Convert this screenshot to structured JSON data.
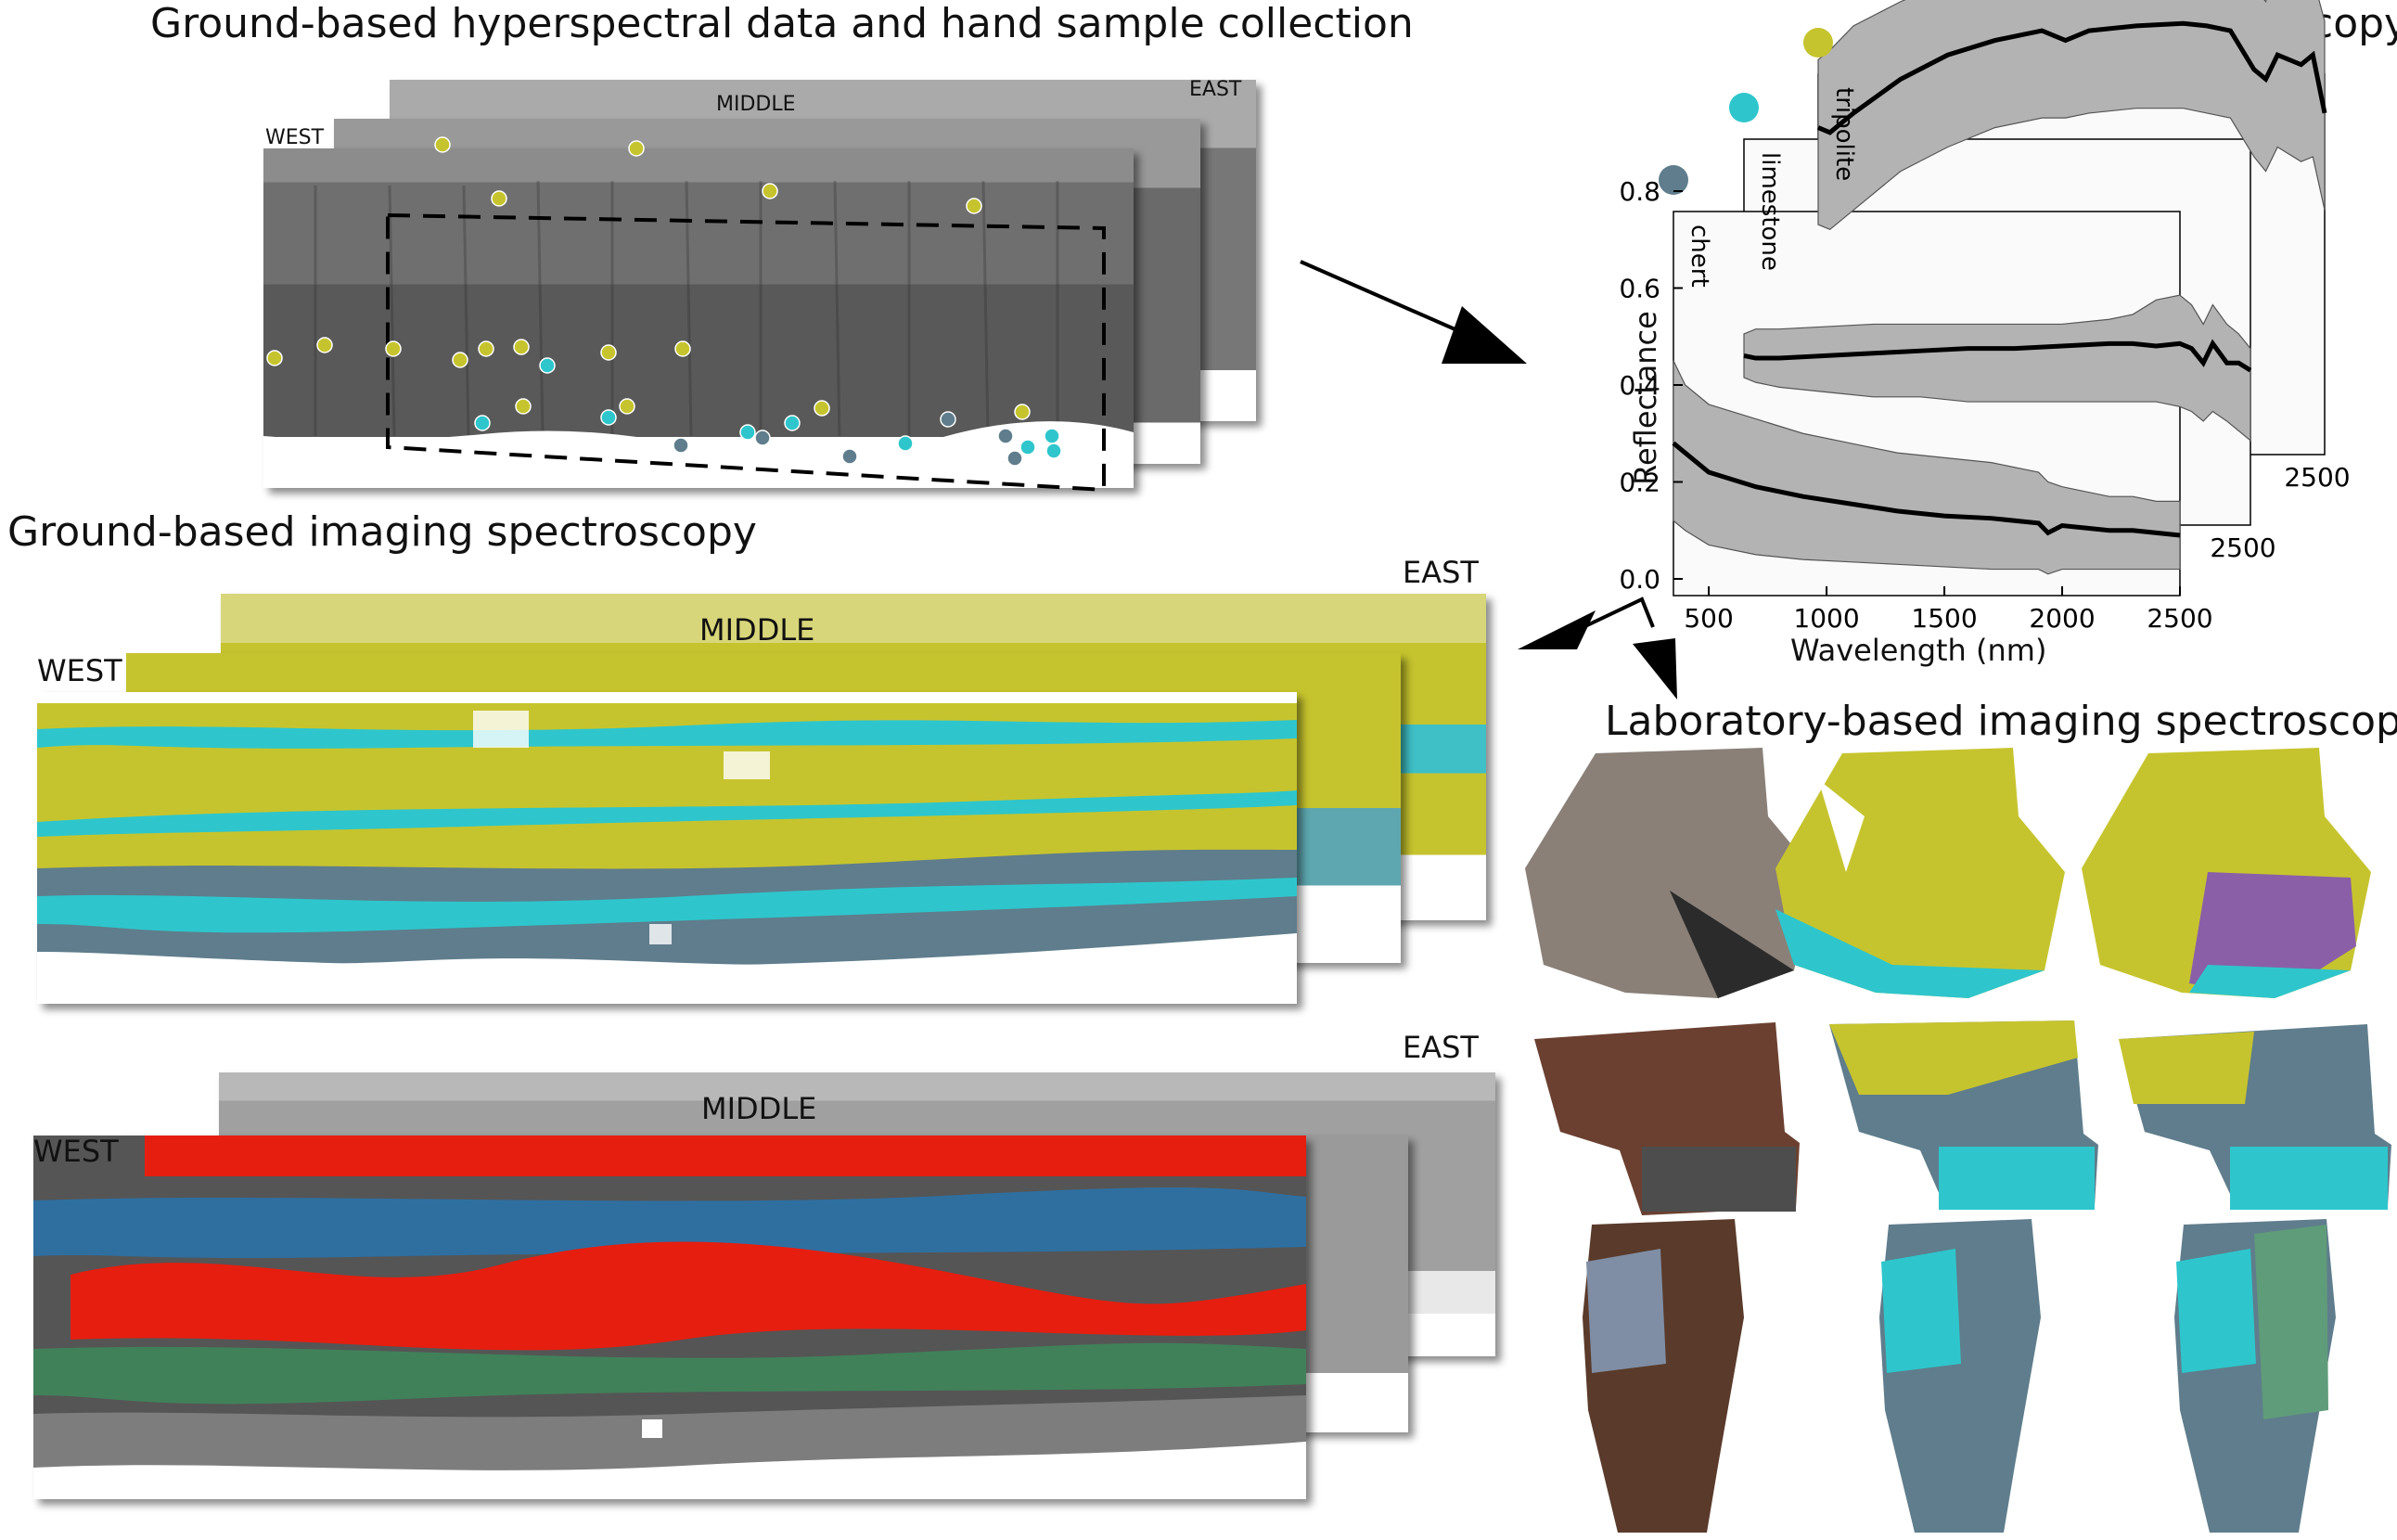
{
  "titles": {
    "field": "Ground-based hyperspectral data and hand sample collection",
    "lab_spec": "Laboratory Spectroscopy",
    "ground_imaging": "Ground-based imaging spectroscopy",
    "lab_imaging": "Laboratory-based imaging spectroscopy"
  },
  "panel_labels": {
    "top": {
      "west": "WEST",
      "middle": "MIDDLE",
      "east": "EAST"
    },
    "mid": {
      "west": "WEST",
      "middle": "MIDDLE",
      "east": "EAST"
    },
    "bottom": {
      "west": "WEST",
      "middle": "MIDDLE",
      "east": "EAST"
    }
  },
  "colors": {
    "tripolite": "#c6c42e",
    "limestone": "#2ec6cc",
    "chert": "#5f7d8c",
    "envelope": "#b3b3b3",
    "mean_line": "#000000"
  },
  "chart_data": {
    "type": "line",
    "title": "Laboratory Spectroscopy",
    "xlabel": "Wavelength (nm)",
    "ylabel": "Reflectance",
    "xlim": [
      350,
      2500
    ],
    "ylim": [
      0.0,
      0.9
    ],
    "x_ticks": [
      "500",
      "1000",
      "1500",
      "2000",
      "2500"
    ],
    "y_ticks": [
      "0.0",
      "0.2",
      "0.4",
      "0.6",
      "0.8"
    ],
    "offset_axis_ticks": {
      "limestone": "2500",
      "tripolite": "2500"
    },
    "series": [
      {
        "name": "chert",
        "x": [
          350,
          400,
          500,
          700,
          900,
          1100,
          1300,
          1500,
          1700,
          1900,
          1940,
          2000,
          2100,
          2200,
          2300,
          2400,
          2500
        ],
        "y": [
          0.28,
          0.26,
          0.22,
          0.19,
          0.17,
          0.155,
          0.14,
          0.13,
          0.125,
          0.115,
          0.095,
          0.11,
          0.105,
          0.1,
          0.1,
          0.095,
          0.09
        ],
        "lower": [
          0.12,
          0.1,
          0.07,
          0.05,
          0.04,
          0.035,
          0.03,
          0.025,
          0.02,
          0.02,
          0.01,
          0.02,
          0.02,
          0.02,
          0.02,
          0.02,
          0.02
        ],
        "upper": [
          0.45,
          0.4,
          0.36,
          0.33,
          0.3,
          0.28,
          0.26,
          0.25,
          0.24,
          0.22,
          0.2,
          0.19,
          0.18,
          0.17,
          0.17,
          0.16,
          0.16
        ]
      },
      {
        "name": "limestone",
        "x": [
          350,
          400,
          500,
          700,
          900,
          1100,
          1300,
          1500,
          1700,
          1900,
          2000,
          2100,
          2200,
          2250,
          2300,
          2340,
          2400,
          2450,
          2500
        ],
        "y": [
          0.315,
          0.31,
          0.31,
          0.315,
          0.32,
          0.325,
          0.33,
          0.33,
          0.335,
          0.34,
          0.34,
          0.335,
          0.34,
          0.33,
          0.3,
          0.34,
          0.3,
          0.3,
          0.285
        ],
        "lower": [
          0.27,
          0.26,
          0.25,
          0.24,
          0.23,
          0.23,
          0.22,
          0.22,
          0.22,
          0.22,
          0.22,
          0.22,
          0.21,
          0.2,
          0.18,
          0.2,
          0.18,
          0.16,
          0.14
        ],
        "upper": [
          0.36,
          0.37,
          0.37,
          0.375,
          0.38,
          0.38,
          0.38,
          0.38,
          0.38,
          0.39,
          0.4,
          0.43,
          0.44,
          0.42,
          0.38,
          0.42,
          0.38,
          0.36,
          0.33
        ]
      },
      {
        "name": "tripolite",
        "x": [
          350,
          400,
          500,
          700,
          900,
          1100,
          1300,
          1400,
          1500,
          1700,
          1900,
          2000,
          2100,
          2200,
          2250,
          2300,
          2400,
          2450,
          2500
        ],
        "y": [
          0.64,
          0.63,
          0.67,
          0.74,
          0.79,
          0.82,
          0.84,
          0.82,
          0.84,
          0.85,
          0.855,
          0.85,
          0.84,
          0.76,
          0.74,
          0.79,
          0.77,
          0.79,
          0.67
        ],
        "lower": [
          0.44,
          0.43,
          0.47,
          0.55,
          0.6,
          0.64,
          0.66,
          0.66,
          0.67,
          0.68,
          0.68,
          0.67,
          0.66,
          0.58,
          0.55,
          0.6,
          0.57,
          0.58,
          0.47
        ],
        "upper": [
          0.78,
          0.8,
          0.85,
          0.9,
          0.94,
          0.97,
          1.0,
          0.99,
          1.0,
          1.02,
          1.06,
          1.03,
          0.97,
          0.93,
          0.9,
          0.98,
          0.94,
          0.95,
          0.86
        ]
      }
    ]
  }
}
